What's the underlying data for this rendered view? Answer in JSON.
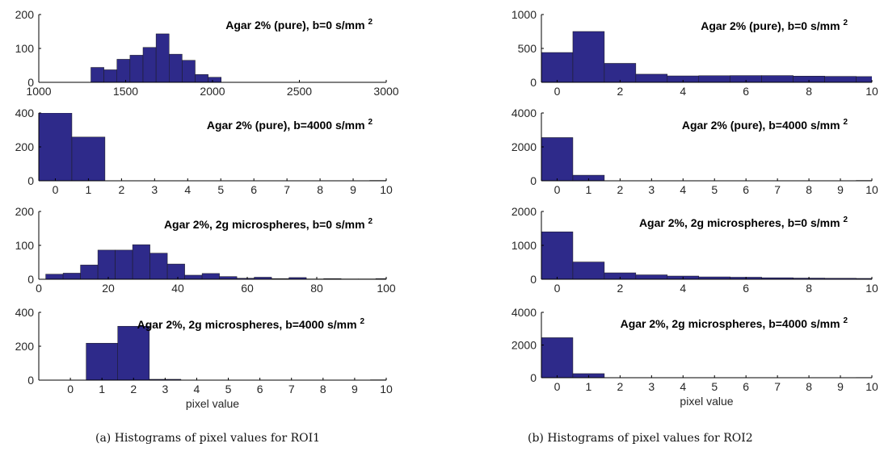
{
  "captions": {
    "left": "(a) Histograms of pixel values for ROI1",
    "right": "(b) Histograms of pixel values for ROI2"
  },
  "colors": {
    "bar": "#2e2a8a"
  },
  "chart_data": [
    {
      "type": "bar",
      "title": "Agar 2% (pure), b=0 s/mm",
      "title_sup": "2",
      "xlabel": "",
      "xlim": [
        1000,
        3000
      ],
      "ylim": [
        0,
        200
      ],
      "xticks": [
        "1000",
        "1500",
        "2000",
        "2500",
        "3000"
      ],
      "xtick_values": [
        1000,
        1500,
        2000,
        2500,
        3000
      ],
      "yticks": [
        "0",
        "100",
        "200"
      ],
      "ytick_values": [
        0,
        100,
        200
      ],
      "bins": [
        [
          1300,
          1375
        ],
        [
          1375,
          1450
        ],
        [
          1450,
          1525
        ],
        [
          1525,
          1600
        ],
        [
          1600,
          1675
        ],
        [
          1675,
          1750
        ],
        [
          1750,
          1825
        ],
        [
          1825,
          1900
        ],
        [
          1900,
          1975
        ],
        [
          1975,
          2050
        ]
      ],
      "values": [
        44,
        37,
        68,
        80,
        103,
        143,
        83,
        65,
        23,
        15
      ]
    },
    {
      "type": "bar",
      "title": "Agar 2% (pure), b=4000 s/mm",
      "title_sup": "2",
      "xlabel": "",
      "xlim": [
        -0.5,
        10
      ],
      "ylim": [
        0,
        400
      ],
      "xticks": [
        "0",
        "1",
        "2",
        "3",
        "4",
        "5",
        "6",
        "7",
        "8",
        "9",
        "10"
      ],
      "xtick_values": [
        0,
        1,
        2,
        3,
        4,
        5,
        6,
        7,
        8,
        9,
        10
      ],
      "yticks": [
        "0",
        "200",
        "400"
      ],
      "ytick_values": [
        0,
        200,
        400
      ],
      "bins": [
        [
          -0.5,
          0.5
        ],
        [
          0.5,
          1.5
        ],
        [
          9.5,
          10.5
        ]
      ],
      "values": [
        400,
        258,
        2
      ]
    },
    {
      "type": "bar",
      "title": "Agar 2%, 2g microspheres, b=0 s/mm",
      "title_sup": "2",
      "xlabel": "",
      "xlim": [
        0,
        100
      ],
      "ylim": [
        0,
        200
      ],
      "xticks": [
        "0",
        "20",
        "40",
        "60",
        "80",
        "100"
      ],
      "xtick_values": [
        0,
        20,
        40,
        60,
        80,
        100
      ],
      "yticks": [
        "0",
        "100",
        "200"
      ],
      "ytick_values": [
        0,
        100,
        200
      ],
      "bins": [
        [
          2,
          7
        ],
        [
          7,
          12
        ],
        [
          12,
          17
        ],
        [
          17,
          22
        ],
        [
          22,
          27
        ],
        [
          27,
          32
        ],
        [
          32,
          37
        ],
        [
          37,
          42
        ],
        [
          42,
          47
        ],
        [
          47,
          52
        ],
        [
          52,
          57
        ],
        [
          57,
          62
        ],
        [
          62,
          67
        ],
        [
          67,
          72
        ],
        [
          72,
          77
        ],
        [
          77,
          82
        ],
        [
          82,
          87
        ],
        [
          87,
          92
        ],
        [
          92,
          97
        ],
        [
          97,
          102
        ]
      ],
      "values": [
        15,
        18,
        42,
        86,
        86,
        102,
        77,
        45,
        12,
        17,
        8,
        3,
        6,
        2,
        5,
        1,
        2,
        1,
        1,
        2
      ]
    },
    {
      "type": "bar",
      "title": "Agar 2%, 2g microspheres, b=4000 s/mm",
      "title_sup": "2",
      "xlabel": "pixel value",
      "xlim": [
        -1,
        10
      ],
      "ylim": [
        0,
        400
      ],
      "xticks": [
        "0",
        "1",
        "2",
        "3",
        "4",
        "5",
        "6",
        "7",
        "8",
        "9",
        "10"
      ],
      "xtick_values": [
        0,
        1,
        2,
        3,
        4,
        5,
        6,
        7,
        8,
        9,
        10
      ],
      "yticks": [
        "0",
        "200",
        "400"
      ],
      "ytick_values": [
        0,
        200,
        400
      ],
      "bins": [
        [
          -0.5,
          0.5
        ],
        [
          0.5,
          1.5
        ],
        [
          1.5,
          2.5
        ],
        [
          2.5,
          3.5
        ],
        [
          9.5,
          10.5
        ]
      ],
      "values": [
        1,
        218,
        318,
        5,
        2
      ]
    },
    {
      "type": "bar",
      "title": "Agar 2% (pure), b=0 s/mm",
      "title_sup": "2",
      "xlabel": "",
      "xlim": [
        -0.5,
        10
      ],
      "ylim": [
        0,
        1000
      ],
      "xticks": [
        "0",
        "2",
        "4",
        "6",
        "8",
        "10"
      ],
      "xtick_values": [
        0,
        2,
        4,
        6,
        8,
        10
      ],
      "yticks": [
        "0",
        "500",
        "1000"
      ],
      "ytick_values": [
        0,
        500,
        1000
      ],
      "bins": [
        [
          -0.5,
          0.5
        ],
        [
          0.5,
          1.5
        ],
        [
          1.5,
          2.5
        ],
        [
          2.5,
          3.5
        ],
        [
          3.5,
          4.5
        ],
        [
          4.5,
          5.5
        ],
        [
          5.5,
          6.5
        ],
        [
          6.5,
          7.5
        ],
        [
          7.5,
          8.5
        ],
        [
          8.5,
          9.5
        ],
        [
          9.5,
          10.5
        ]
      ],
      "values": [
        440,
        750,
        280,
        120,
        95,
        98,
        100,
        100,
        92,
        88,
        85
      ]
    },
    {
      "type": "bar",
      "title": "Agar 2% (pure), b=4000 s/mm",
      "title_sup": "2",
      "xlabel": "",
      "xlim": [
        -0.5,
        10
      ],
      "ylim": [
        0,
        4000
      ],
      "xticks": [
        "0",
        "1",
        "2",
        "3",
        "4",
        "5",
        "6",
        "7",
        "8",
        "9",
        "10"
      ],
      "xtick_values": [
        0,
        1,
        2,
        3,
        4,
        5,
        6,
        7,
        8,
        9,
        10
      ],
      "yticks": [
        "0",
        "2000",
        "4000"
      ],
      "ytick_values": [
        0,
        2000,
        4000
      ],
      "bins": [
        [
          -0.5,
          0.5
        ],
        [
          0.5,
          1.5
        ],
        [
          9.5,
          10.5
        ]
      ],
      "values": [
        2550,
        330,
        20
      ]
    },
    {
      "type": "bar",
      "title": "Agar 2%, 2g microspheres, b=0 s/mm",
      "title_sup": "2",
      "xlabel": "",
      "xlim": [
        -0.5,
        10
      ],
      "ylim": [
        0,
        2000
      ],
      "xticks": [
        "0",
        "2",
        "4",
        "6",
        "8",
        "10"
      ],
      "xtick_values": [
        0,
        2,
        4,
        6,
        8,
        10
      ],
      "yticks": [
        "0",
        "1000",
        "2000"
      ],
      "ytick_values": [
        0,
        1000,
        2000
      ],
      "bins": [
        [
          -0.5,
          0.5
        ],
        [
          0.5,
          1.5
        ],
        [
          1.5,
          2.5
        ],
        [
          2.5,
          3.5
        ],
        [
          3.5,
          4.5
        ],
        [
          4.5,
          5.5
        ],
        [
          5.5,
          6.5
        ],
        [
          6.5,
          7.5
        ],
        [
          7.5,
          8.5
        ],
        [
          8.5,
          9.5
        ],
        [
          9.5,
          10.5
        ]
      ],
      "values": [
        1400,
        510,
        190,
        130,
        95,
        70,
        60,
        45,
        35,
        30,
        25
      ]
    },
    {
      "type": "bar",
      "title": "Agar 2%, 2g microspheres, b=4000 s/mm",
      "title_sup": "2",
      "xlabel": "pixel value",
      "xlim": [
        -0.5,
        10
      ],
      "ylim": [
        0,
        4000
      ],
      "xticks": [
        "0",
        "1",
        "2",
        "3",
        "4",
        "5",
        "6",
        "7",
        "8",
        "9",
        "10"
      ],
      "xtick_values": [
        0,
        1,
        2,
        3,
        4,
        5,
        6,
        7,
        8,
        9,
        10
      ],
      "yticks": [
        "0",
        "2000",
        "4000"
      ],
      "ytick_values": [
        0,
        2000,
        4000
      ],
      "bins": [
        [
          -0.5,
          0.5
        ],
        [
          0.5,
          1.5
        ],
        [
          9.5,
          10.5
        ]
      ],
      "values": [
        2450,
        250,
        15
      ]
    }
  ]
}
